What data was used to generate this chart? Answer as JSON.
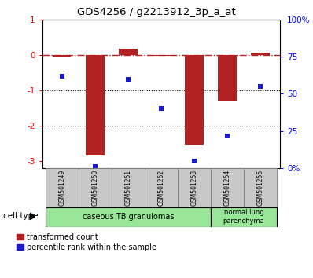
{
  "title": "GDS4256 / g2213912_3p_a_at",
  "samples": [
    "GSM501249",
    "GSM501250",
    "GSM501251",
    "GSM501252",
    "GSM501253",
    "GSM501254",
    "GSM501255"
  ],
  "transformed_count": [
    -0.05,
    -2.85,
    0.18,
    -0.02,
    -2.55,
    -1.3,
    0.07
  ],
  "percentile_rank": [
    62,
    1,
    60,
    40,
    5,
    22,
    55
  ],
  "ylim_left": [
    -3.2,
    1.0
  ],
  "ylim_right": [
    0,
    100
  ],
  "yticks_left": [
    1,
    0,
    -1,
    -2,
    -3
  ],
  "yticks_right": [
    0,
    25,
    50,
    75,
    100
  ],
  "ytick_labels_left": [
    "1",
    "0",
    "-1",
    "-2",
    "-3"
  ],
  "ytick_labels_right": [
    "0%",
    "25",
    "50",
    "75",
    "100%"
  ],
  "dotted_hlines": [
    -1,
    -2
  ],
  "bar_color": "#b22222",
  "dot_color": "#1a1acd",
  "cell_groups": [
    {
      "label": "caseous TB granulomas",
      "start": 0,
      "end": 4,
      "color": "#98e698"
    },
    {
      "label": "normal lung\nparenchyma",
      "start": 5,
      "end": 6,
      "color": "#98e698"
    }
  ],
  "legend_bar_label": "transformed count",
  "legend_dot_label": "percentile rank within the sample",
  "cell_type_label": "cell type",
  "sample_box_color": "#c8c8c8"
}
